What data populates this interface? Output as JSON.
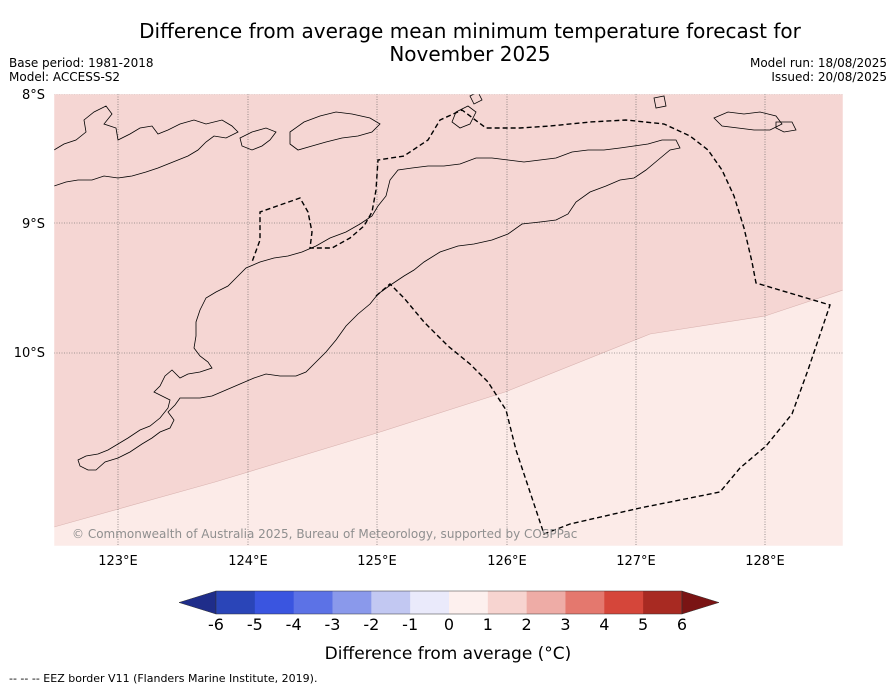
{
  "title_line1": "Difference from average mean minimum temperature forecast for",
  "title_line2": "November 2025",
  "meta": {
    "base_period": "Base period: 1981-2018",
    "model": "Model: ACCESS-S2",
    "model_run": "Model run: 18/08/2025",
    "issued": "Issued: 20/08/2025"
  },
  "map": {
    "lat_labels": [
      "8°S",
      "9°S",
      "10°S"
    ],
    "lon_labels": [
      "123°E",
      "124°E",
      "125°E",
      "126°E",
      "127°E",
      "128°E"
    ],
    "lat_range": [
      -11.5,
      -8.0
    ],
    "lon_range": [
      122.5,
      128.6
    ],
    "copyright": "© Commonwealth of Australia 2025, Bureau of Meteorology, supported by COSPPac",
    "region_colors": {
      "bin_1_to_2": "#f5d6d3",
      "bin_0_to_1": "#fcebe8"
    }
  },
  "colorbar": {
    "label": "Difference from average (°C)",
    "ticks": [
      "-6",
      "-5",
      "-4",
      "-3",
      "-2",
      "-1",
      "0",
      "1",
      "2",
      "3",
      "4",
      "5",
      "6"
    ],
    "colors": [
      "#1f2d8a",
      "#2a45b8",
      "#3a55e0",
      "#5c72e6",
      "#8a99eb",
      "#c2c8f2",
      "#eaeafb",
      "#fdf0ee",
      "#f7d4d0",
      "#eeaca6",
      "#e4786e",
      "#d5463a",
      "#a82a22",
      "#7a1414"
    ]
  },
  "footnote": "-- -- -- EEZ border V11 (Flanders Marine Institute, 2019)."
}
